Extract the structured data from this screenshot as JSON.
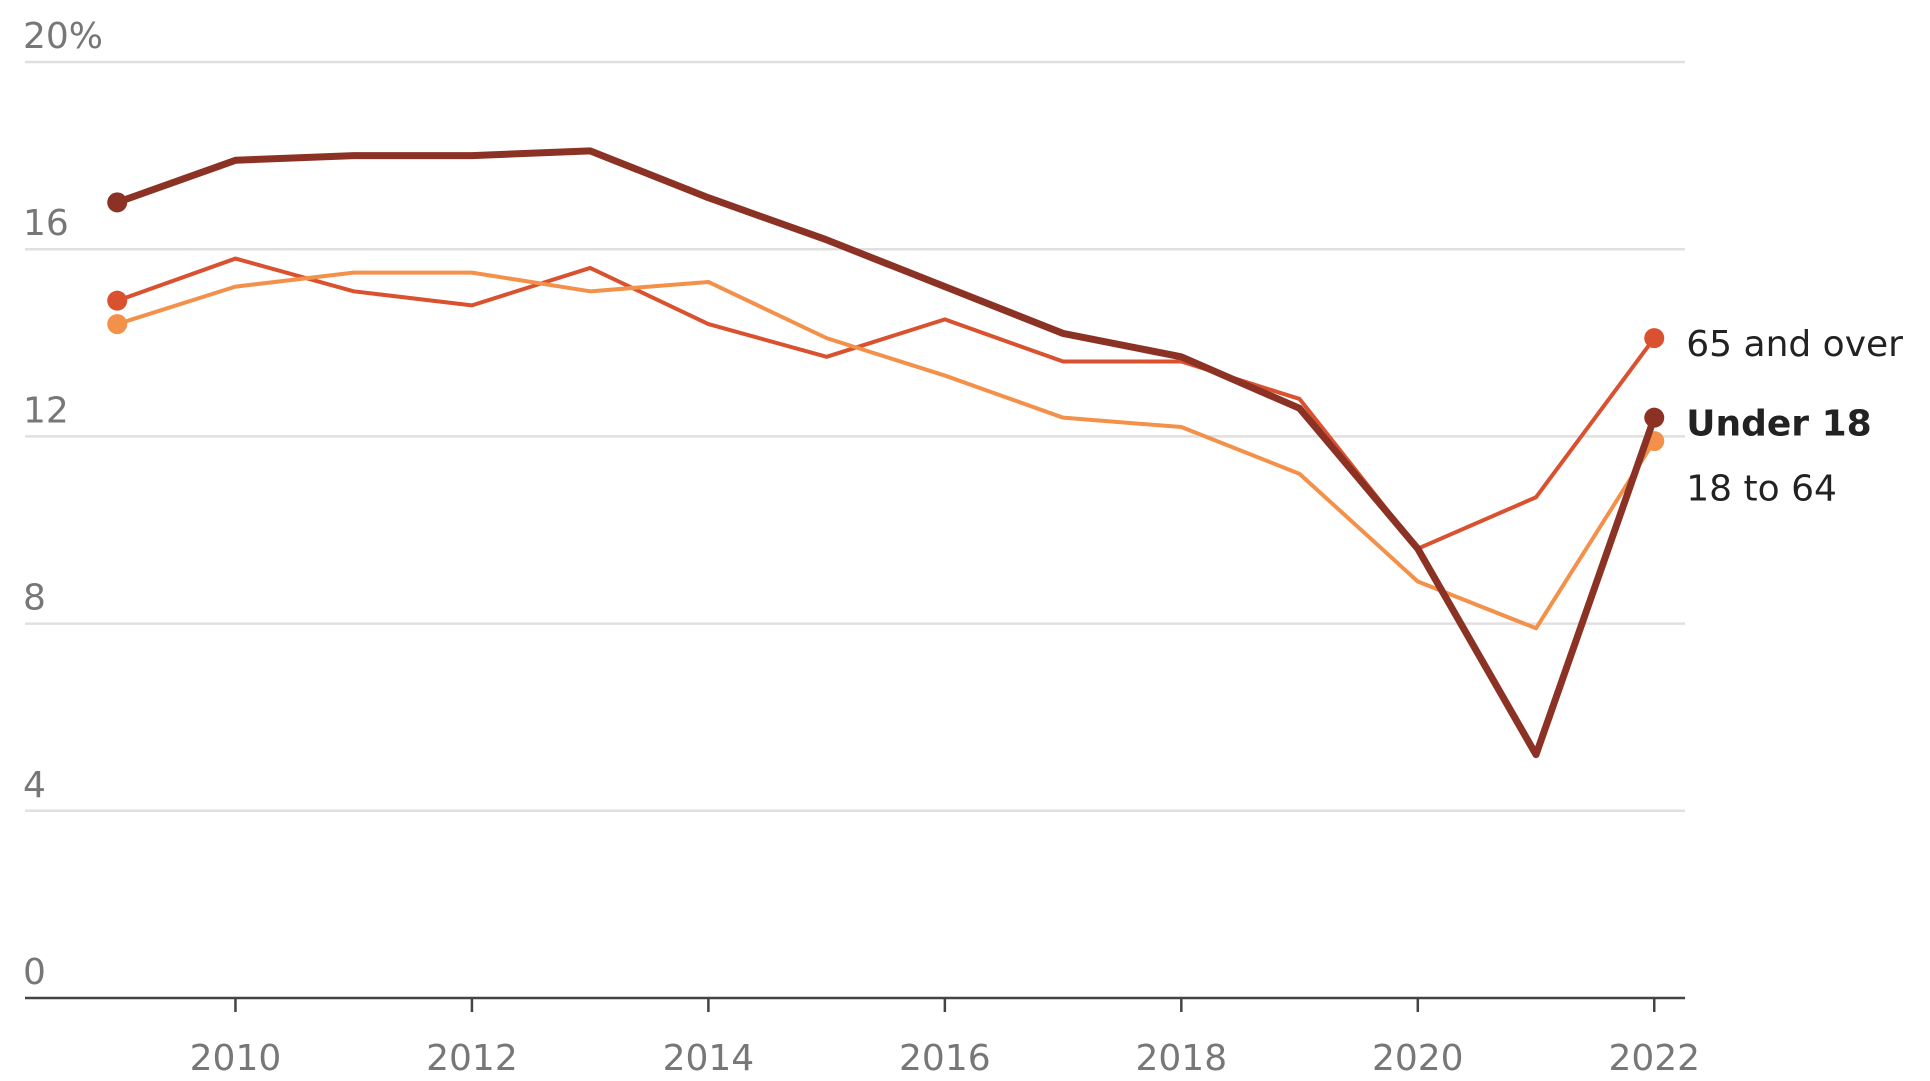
{
  "chart_data": {
    "type": "line",
    "x": [
      2009,
      2010,
      2011,
      2012,
      2013,
      2014,
      2015,
      2016,
      2017,
      2018,
      2019,
      2020,
      2021,
      2022
    ],
    "series": [
      {
        "name": "65 and over",
        "color": "#d9512f",
        "values": [
          14.9,
          15.8,
          15.1,
          14.8,
          15.6,
          14.4,
          13.7,
          14.5,
          13.6,
          13.6,
          12.8,
          9.6,
          10.7,
          14.1
        ]
      },
      {
        "name": "Under 18",
        "color": "#8b3224",
        "highlight": true,
        "values": [
          17.0,
          17.9,
          18.0,
          18.0,
          18.1,
          17.1,
          16.2,
          15.2,
          14.2,
          13.7,
          12.6,
          9.6,
          5.2,
          12.4
        ]
      },
      {
        "name": "18 to 64",
        "color": "#f3904a",
        "values": [
          14.4,
          15.2,
          15.5,
          15.5,
          15.1,
          15.3,
          14.1,
          13.3,
          12.4,
          12.2,
          11.2,
          8.9,
          7.9,
          11.9
        ]
      }
    ],
    "xlim": [
      2008.22,
      2022.26
    ],
    "xticks": [
      2010,
      2012,
      2014,
      2016,
      2018,
      2020,
      2022
    ],
    "ylim": [
      0,
      20
    ],
    "yticks": [
      0,
      4,
      8,
      12,
      16,
      {
        "value": 20,
        "label": "20%"
      }
    ],
    "grid": true
  }
}
